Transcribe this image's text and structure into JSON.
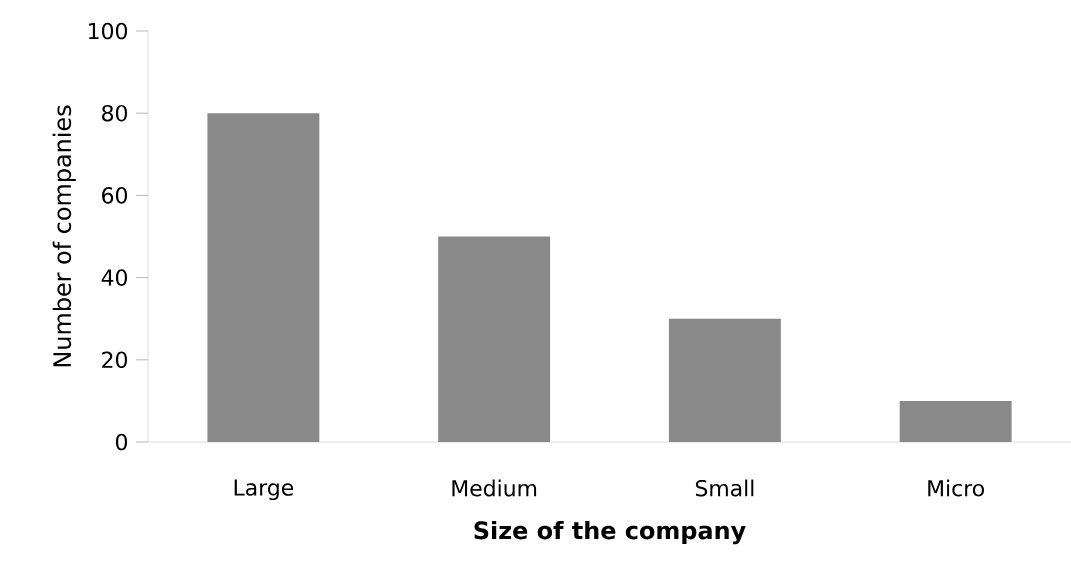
{
  "chart_data": {
    "type": "bar",
    "xlabel": "Size of the company",
    "ylabel": "Number of companies",
    "categories": [
      "Large",
      "Medium",
      "Small",
      "Micro"
    ],
    "values": [
      80,
      50,
      30,
      10
    ],
    "color": "#898989",
    "ylim": [
      0,
      100
    ],
    "yticks": [
      0,
      20,
      40,
      60,
      80,
      100
    ]
  }
}
